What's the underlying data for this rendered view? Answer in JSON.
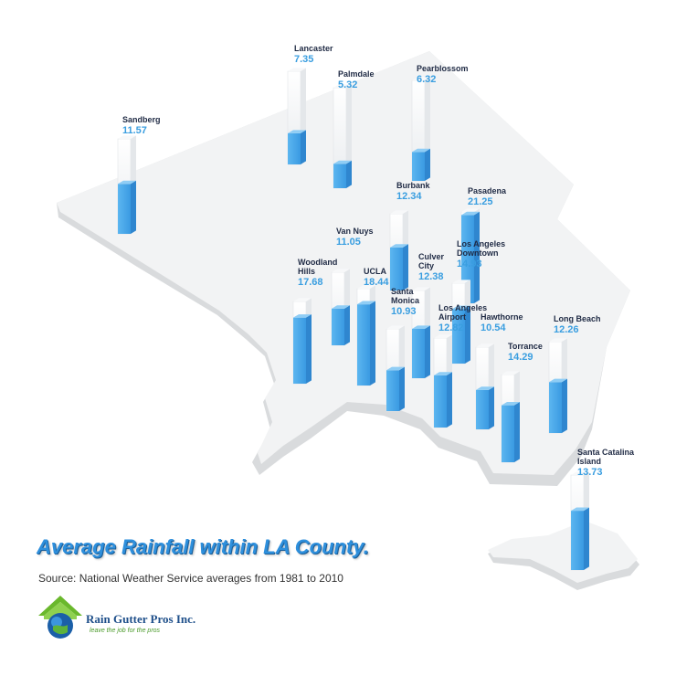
{
  "chart_data": {
    "type": "bar",
    "title": "Average Rainfall within LA County.",
    "subtitle": "Source: National Weather Service averages from 1981 to 2010",
    "stations": [
      {
        "name": "Lancaster",
        "value": 7.35
      },
      {
        "name": "Palmdale",
        "value": 5.32
      },
      {
        "name": "Pearblossom",
        "value": 6.32
      },
      {
        "name": "Sandberg",
        "value": 11.57
      },
      {
        "name": "Burbank",
        "value": 12.34
      },
      {
        "name": "Pasadena",
        "value": 21.25
      },
      {
        "name": "Van Nuys",
        "value": 11.05
      },
      {
        "name": "Los Angeles Downtown",
        "value": 14.93
      },
      {
        "name": "Woodland Hills",
        "value": 17.68
      },
      {
        "name": "UCLA",
        "value": 18.44
      },
      {
        "name": "Culver City",
        "value": 12.38
      },
      {
        "name": "Santa Monica",
        "value": 10.93
      },
      {
        "name": "Los Angeles Airport",
        "value": 12.82
      },
      {
        "name": "Hawthorne",
        "value": 10.54
      },
      {
        "name": "Long Beach",
        "value": 12.26
      },
      {
        "name": "Torrance",
        "value": 14.29
      },
      {
        "name": "Santa Catalina Island",
        "value": 13.73
      }
    ],
    "colors": {
      "bar": "#4aa8ea",
      "bar_side": "#2f86cf",
      "empty_column": "#eef0f2",
      "map": "#f1f2f3",
      "map_edge": "#d6d8da"
    }
  },
  "logo": {
    "name": "Rain Gutter Pros Inc.",
    "tagline": "leave the job for the pros"
  }
}
